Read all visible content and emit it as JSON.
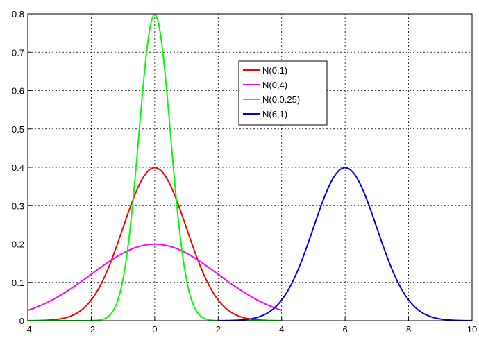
{
  "chart_data": {
    "type": "line",
    "title": "",
    "xlabel": "",
    "ylabel": "",
    "xlim": [
      -4,
      10
    ],
    "ylim": [
      0,
      0.8
    ],
    "xticks": [
      "-4",
      "-2",
      "0",
      "2",
      "4",
      "6",
      "8",
      "10"
    ],
    "yticks": [
      "0",
      "0.1",
      "0.2",
      "0.3",
      "0.4",
      "0.5",
      "0.6",
      "0.7",
      "0.8"
    ],
    "grid": true,
    "legend_position": "top-center",
    "series": [
      {
        "name": "N(0,1)",
        "color": "#ff0000",
        "distribution": "normal",
        "mean": 0,
        "variance": 1,
        "x_range": [
          -4,
          4
        ],
        "peak_y": 0.399
      },
      {
        "name": "N(0,4)",
        "color": "#ff00ff",
        "distribution": "normal",
        "mean": 0,
        "variance": 4,
        "x_range": [
          -4,
          4
        ],
        "peak_y": 0.199
      },
      {
        "name": "N(0,0.25)",
        "color": "#00ff00",
        "distribution": "normal",
        "mean": 0,
        "variance": 0.25,
        "x_range": [
          -4,
          4
        ],
        "peak_y": 0.798
      },
      {
        "name": "N(6,1)",
        "color": "#0000ff",
        "distribution": "normal",
        "mean": 6,
        "variance": 1,
        "x_range": [
          2,
          10
        ],
        "peak_y": 0.399
      }
    ]
  }
}
